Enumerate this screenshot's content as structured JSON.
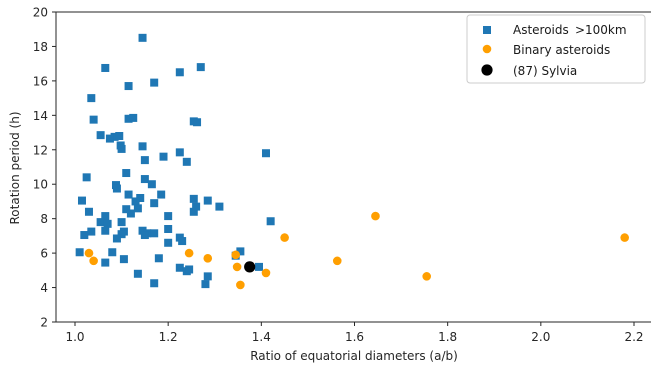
{
  "chart_data": {
    "type": "scatter",
    "title": "",
    "xlabel": "Ratio of equatorial diameters (a/b)",
    "ylabel": "Rotation period (h)",
    "xlim": [
      0.95,
      2.23
    ],
    "ylim": [
      2,
      20
    ],
    "xticks": [
      1.0,
      1.2,
      1.4,
      1.6,
      1.8,
      2.0,
      2.2
    ],
    "xtick_labels": [
      "1.0",
      "1.2",
      "1.4",
      "1.6",
      "1.8",
      "2.0",
      "2.2"
    ],
    "yticks": [
      2,
      4,
      6,
      8,
      10,
      12,
      14,
      16,
      18,
      20
    ],
    "ytick_labels": [
      "2",
      "4",
      "6",
      "8",
      "10",
      "12",
      "14",
      "16",
      "18",
      "20"
    ],
    "grid": false,
    "legend_position": "top-right",
    "series": [
      {
        "name": "Asteroids >100km",
        "marker": "square",
        "color": "#1f77b4",
        "points": [
          [
            1.145,
            18.5
          ],
          [
            1.065,
            16.75
          ],
          [
            1.27,
            16.8
          ],
          [
            1.225,
            16.5
          ],
          [
            1.035,
            15.0
          ],
          [
            1.17,
            15.9
          ],
          [
            1.115,
            15.7
          ],
          [
            1.04,
            13.75
          ],
          [
            1.115,
            13.8
          ],
          [
            1.125,
            13.85
          ],
          [
            1.255,
            13.65
          ],
          [
            1.262,
            13.6
          ],
          [
            1.055,
            12.85
          ],
          [
            1.085,
            12.75
          ],
          [
            1.095,
            12.8
          ],
          [
            1.075,
            12.65
          ],
          [
            1.098,
            12.25
          ],
          [
            1.1,
            12.05
          ],
          [
            1.145,
            12.2
          ],
          [
            1.225,
            11.85
          ],
          [
            1.19,
            11.6
          ],
          [
            1.41,
            11.8
          ],
          [
            1.24,
            11.3
          ],
          [
            1.15,
            11.4
          ],
          [
            1.11,
            10.65
          ],
          [
            1.025,
            10.4
          ],
          [
            1.15,
            10.3
          ],
          [
            1.165,
            10.0
          ],
          [
            1.088,
            9.95
          ],
          [
            1.09,
            9.75
          ],
          [
            1.015,
            9.05
          ],
          [
            1.115,
            9.4
          ],
          [
            1.13,
            9.0
          ],
          [
            1.14,
            9.2
          ],
          [
            1.185,
            9.4
          ],
          [
            1.255,
            9.15
          ],
          [
            1.285,
            9.05
          ],
          [
            1.03,
            8.4
          ],
          [
            1.065,
            8.15
          ],
          [
            1.12,
            8.3
          ],
          [
            1.11,
            8.55
          ],
          [
            1.135,
            8.6
          ],
          [
            1.17,
            8.9
          ],
          [
            1.2,
            8.15
          ],
          [
            1.255,
            8.4
          ],
          [
            1.26,
            8.7
          ],
          [
            1.31,
            8.7
          ],
          [
            1.055,
            7.8
          ],
          [
            1.07,
            7.7
          ],
          [
            1.1,
            7.8
          ],
          [
            1.065,
            7.3
          ],
          [
            1.02,
            7.05
          ],
          [
            1.035,
            7.25
          ],
          [
            1.105,
            7.25
          ],
          [
            1.1,
            7.1
          ],
          [
            1.09,
            6.85
          ],
          [
            1.145,
            7.3
          ],
          [
            1.155,
            7.15
          ],
          [
            1.15,
            7.05
          ],
          [
            1.17,
            7.15
          ],
          [
            1.2,
            7.4
          ],
          [
            1.225,
            6.9
          ],
          [
            1.23,
            6.7
          ],
          [
            1.2,
            6.6
          ],
          [
            1.42,
            7.85
          ],
          [
            1.01,
            6.05
          ],
          [
            1.08,
            6.05
          ],
          [
            1.105,
            5.65
          ],
          [
            1.065,
            5.45
          ],
          [
            1.18,
            5.7
          ],
          [
            1.225,
            5.15
          ],
          [
            1.24,
            4.95
          ],
          [
            1.245,
            5.05
          ],
          [
            1.135,
            4.8
          ],
          [
            1.17,
            4.25
          ],
          [
            1.28,
            4.2
          ],
          [
            1.285,
            4.65
          ],
          [
            1.355,
            6.1
          ],
          [
            1.345,
            5.85
          ],
          [
            1.395,
            5.2
          ]
        ]
      },
      {
        "name": "Binary asteroids",
        "marker": "circle",
        "color": "#ff9f00",
        "points": [
          [
            1.03,
            6.0
          ],
          [
            1.04,
            5.55
          ],
          [
            1.245,
            6.0
          ],
          [
            1.285,
            5.7
          ],
          [
            1.345,
            5.9
          ],
          [
            1.348,
            5.2
          ],
          [
            1.41,
            4.85
          ],
          [
            1.355,
            4.15
          ],
          [
            1.45,
            6.9
          ],
          [
            1.563,
            5.55
          ],
          [
            1.645,
            8.15
          ],
          [
            1.755,
            4.65
          ],
          [
            2.18,
            6.9
          ]
        ]
      },
      {
        "name": "(87) Sylvia",
        "marker": "circle",
        "color": "#000000",
        "points": [
          [
            1.375,
            5.2
          ]
        ]
      }
    ]
  },
  "legend": {
    "items": [
      {
        "label": "Asteroids  >100km",
        "color": "#1f77b4",
        "marker": "square"
      },
      {
        "label": "Binary asteroids",
        "color": "#ff9f00",
        "marker": "circle"
      },
      {
        "label": "(87) Sylvia",
        "color": "#000000",
        "marker": "circle-large"
      }
    ]
  }
}
